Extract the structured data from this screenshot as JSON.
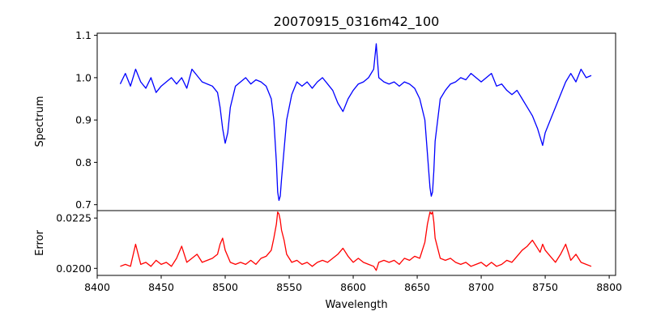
{
  "chart_data": [
    {
      "type": "line",
      "title": "20070915_0316m42_100",
      "xlabel": "",
      "ylabel": "Spectrum",
      "xlim": [
        8400,
        8805
      ],
      "ylim": [
        0.686,
        1.105
      ],
      "yticks": [
        0.7,
        0.8,
        0.9,
        1.0,
        1.1
      ],
      "ytick_labels": [
        "0.7",
        "0.8",
        "0.9",
        "1.0",
        "1.1"
      ],
      "grid": false,
      "color": "#0000ff",
      "series": [
        {
          "x": [
            8418,
            8422,
            8426,
            8430,
            8434,
            8438,
            8442,
            8446,
            8450,
            8454,
            8458,
            8462,
            8466,
            8470,
            8474,
            8478,
            8482,
            8486,
            8490,
            8494,
            8496,
            8498,
            8500,
            8502,
            8504,
            8508,
            8512,
            8516,
            8520,
            8524,
            8528,
            8532,
            8536,
            8538,
            8540,
            8541,
            8542,
            8543,
            8544,
            8546,
            8548,
            8552,
            8556,
            8560,
            8564,
            8568,
            8572,
            8576,
            8580,
            8584,
            8588,
            8592,
            8596,
            8600,
            8604,
            8608,
            8612,
            8616,
            8618,
            8620,
            8624,
            8628,
            8632,
            8636,
            8640,
            8644,
            8648,
            8652,
            8656,
            8658,
            8660,
            8661,
            8662,
            8663,
            8664,
            8666,
            8668,
            8672,
            8676,
            8680,
            8684,
            8688,
            8692,
            8696,
            8700,
            8704,
            8708,
            8712,
            8716,
            8720,
            8724,
            8728,
            8732,
            8736,
            8740,
            8744,
            8746,
            8748,
            8750,
            8754,
            8758,
            8762,
            8766,
            8770,
            8774,
            8778,
            8782,
            8786
          ],
          "y": [
            0.985,
            1.01,
            0.98,
            1.02,
            0.99,
            0.975,
            1.0,
            0.965,
            0.98,
            0.99,
            1.0,
            0.985,
            1.0,
            0.975,
            1.02,
            1.005,
            0.99,
            0.985,
            0.98,
            0.965,
            0.93,
            0.88,
            0.845,
            0.87,
            0.93,
            0.98,
            0.99,
            1.0,
            0.985,
            0.995,
            0.99,
            0.98,
            0.95,
            0.9,
            0.8,
            0.73,
            0.71,
            0.72,
            0.76,
            0.83,
            0.9,
            0.96,
            0.99,
            0.98,
            0.99,
            0.975,
            0.99,
            1.0,
            0.985,
            0.97,
            0.94,
            0.92,
            0.95,
            0.97,
            0.985,
            0.99,
            1.0,
            1.02,
            1.08,
            1.0,
            0.99,
            0.985,
            0.99,
            0.98,
            0.99,
            0.985,
            0.975,
            0.95,
            0.9,
            0.82,
            0.74,
            0.72,
            0.73,
            0.78,
            0.85,
            0.9,
            0.95,
            0.97,
            0.985,
            0.99,
            1.0,
            0.995,
            1.01,
            1.0,
            0.99,
            1.0,
            1.01,
            0.98,
            0.985,
            0.97,
            0.96,
            0.97,
            0.95,
            0.93,
            0.91,
            0.88,
            0.86,
            0.84,
            0.87,
            0.9,
            0.93,
            0.96,
            0.99,
            1.01,
            0.99,
            1.02,
            1.0,
            1.005
          ]
        }
      ]
    },
    {
      "type": "line",
      "title": "",
      "xlabel": "Wavelength",
      "ylabel": "Error",
      "xlim": [
        8400,
        8805
      ],
      "ylim": [
        0.01965,
        0.02287
      ],
      "yticks": [
        0.02,
        0.0225
      ],
      "ytick_labels": [
        "0.0200",
        "0.0225"
      ],
      "xticks": [
        8400,
        8450,
        8500,
        8550,
        8600,
        8650,
        8700,
        8750,
        8800
      ],
      "xtick_labels": [
        "8400",
        "8450",
        "8500",
        "8550",
        "8600",
        "8650",
        "8700",
        "8750",
        "8800"
      ],
      "grid": false,
      "color": "#ff0000",
      "series": [
        {
          "x": [
            8418,
            8422,
            8426,
            8430,
            8434,
            8438,
            8442,
            8446,
            8450,
            8454,
            8458,
            8462,
            8466,
            8470,
            8474,
            8478,
            8482,
            8486,
            8490,
            8494,
            8496,
            8498,
            8500,
            8502,
            8504,
            8508,
            8512,
            8516,
            8520,
            8524,
            8528,
            8532,
            8536,
            8538,
            8540,
            8541,
            8542,
            8543,
            8544,
            8546,
            8548,
            8552,
            8556,
            8560,
            8564,
            8568,
            8572,
            8576,
            8580,
            8584,
            8588,
            8592,
            8596,
            8600,
            8604,
            8608,
            8612,
            8616,
            8618,
            8620,
            8624,
            8628,
            8632,
            8636,
            8640,
            8644,
            8648,
            8652,
            8656,
            8658,
            8660,
            8661,
            8662,
            8663,
            8664,
            8666,
            8668,
            8672,
            8676,
            8680,
            8684,
            8688,
            8692,
            8696,
            8700,
            8704,
            8708,
            8712,
            8716,
            8720,
            8724,
            8728,
            8732,
            8736,
            8740,
            8744,
            8746,
            8748,
            8750,
            8754,
            8758,
            8762,
            8766,
            8770,
            8774,
            8778,
            8782,
            8786
          ],
          "y": [
            0.0201,
            0.0202,
            0.0201,
            0.0212,
            0.0202,
            0.0203,
            0.0201,
            0.0204,
            0.0202,
            0.0203,
            0.0201,
            0.0205,
            0.0211,
            0.0203,
            0.0205,
            0.0207,
            0.0203,
            0.0204,
            0.0205,
            0.0207,
            0.0212,
            0.0215,
            0.0209,
            0.0206,
            0.0203,
            0.0202,
            0.0203,
            0.0202,
            0.0204,
            0.0202,
            0.0205,
            0.0206,
            0.0209,
            0.0215,
            0.0222,
            0.0228,
            0.0227,
            0.0224,
            0.0219,
            0.0214,
            0.0207,
            0.0203,
            0.0204,
            0.0202,
            0.0203,
            0.0201,
            0.0203,
            0.0204,
            0.0203,
            0.0205,
            0.0207,
            0.021,
            0.0206,
            0.0203,
            0.0205,
            0.0203,
            0.0202,
            0.0201,
            0.0199,
            0.0203,
            0.0204,
            0.0203,
            0.0204,
            0.0202,
            0.0205,
            0.0204,
            0.0206,
            0.0205,
            0.0213,
            0.0222,
            0.0228,
            0.0227,
            0.0228,
            0.0223,
            0.0215,
            0.021,
            0.0205,
            0.0204,
            0.0205,
            0.0203,
            0.0202,
            0.0203,
            0.0201,
            0.0202,
            0.0203,
            0.0201,
            0.0203,
            0.0201,
            0.0202,
            0.0204,
            0.0203,
            0.0206,
            0.0209,
            0.0211,
            0.0214,
            0.021,
            0.0208,
            0.0212,
            0.0209,
            0.0206,
            0.0203,
            0.0207,
            0.0212,
            0.0204,
            0.0207,
            0.0203,
            0.0202,
            0.0201
          ]
        }
      ]
    }
  ]
}
